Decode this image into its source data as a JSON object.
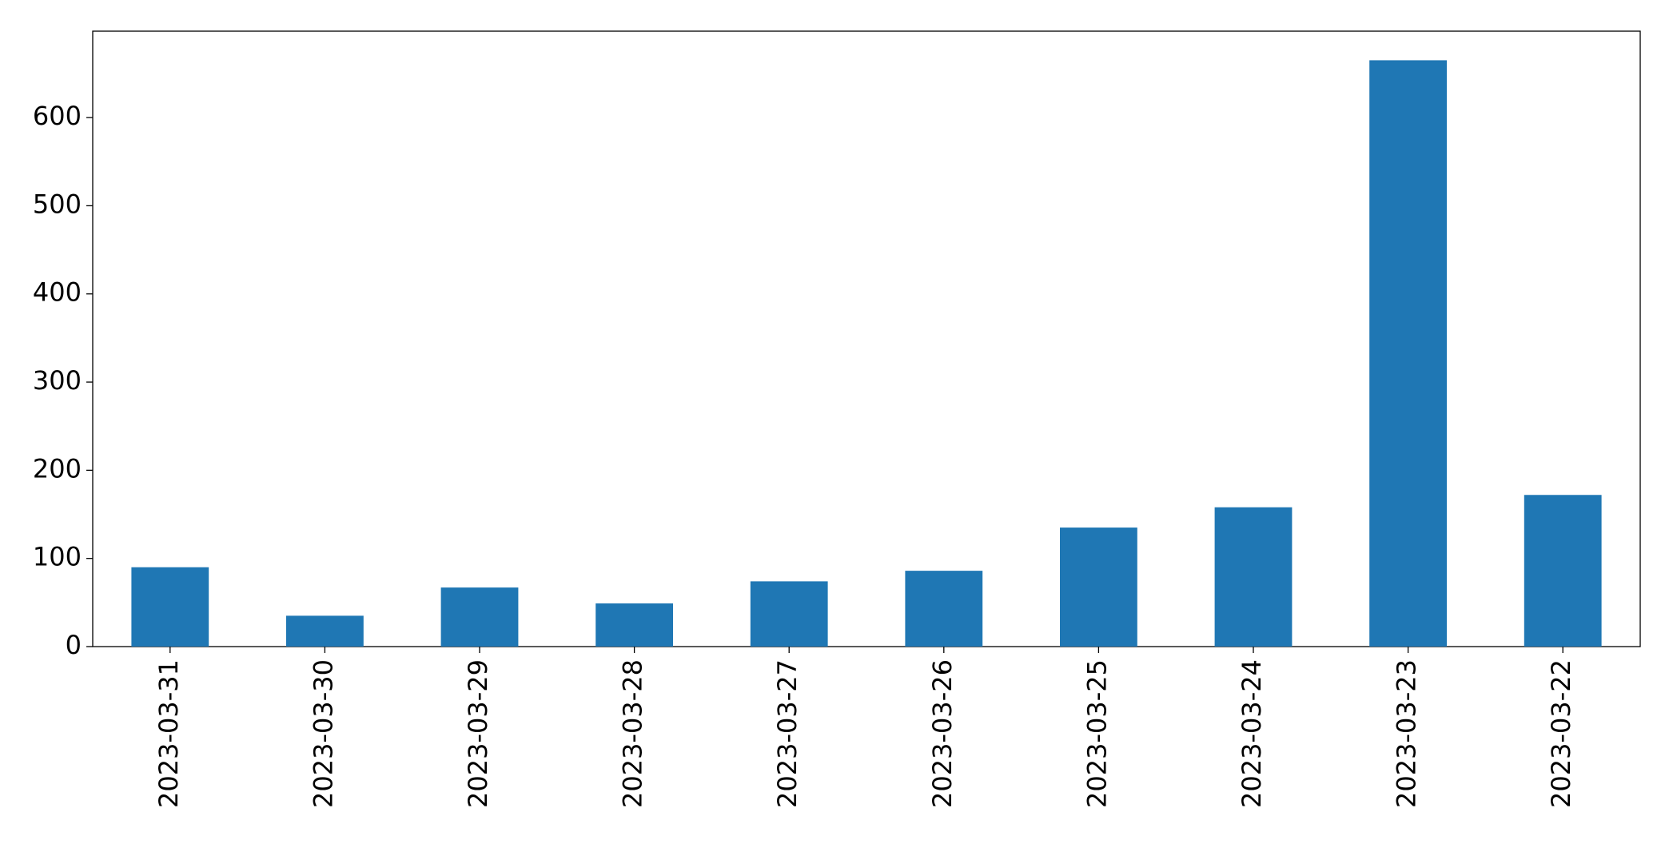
{
  "chart_data": {
    "type": "bar",
    "categories": [
      "2023-03-31",
      "2023-03-30",
      "2023-03-29",
      "2023-03-28",
      "2023-03-27",
      "2023-03-26",
      "2023-03-25",
      "2023-03-24",
      "2023-03-23",
      "2023-03-22"
    ],
    "values": [
      90,
      35,
      67,
      49,
      74,
      86,
      135,
      158,
      665,
      172
    ],
    "color": "#1f77b4",
    "ylim": [
      0,
      698
    ],
    "yticks": [
      0,
      100,
      200,
      300,
      400,
      500,
      600
    ],
    "grid": false
  }
}
